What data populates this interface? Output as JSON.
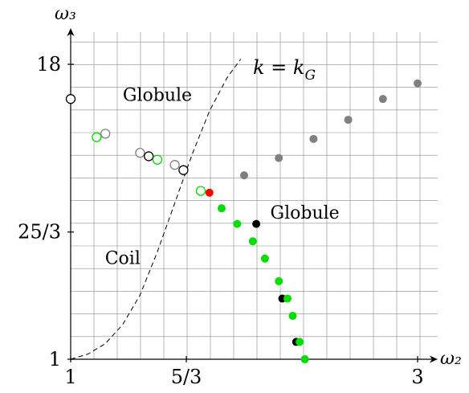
{
  "chart_data": {
    "type": "scatter",
    "title": "",
    "xlabel": "ω₂",
    "ylabel": "ω₃",
    "xlim": [
      1,
      3
    ],
    "ylim": [
      1,
      18
    ],
    "grid": true,
    "x_ticks": [
      {
        "value": 1,
        "label": "1"
      },
      {
        "value": 1.6667,
        "label": "5/3"
      },
      {
        "value": 3,
        "label": "3"
      }
    ],
    "y_ticks": [
      {
        "value": 1,
        "label": "1"
      },
      {
        "value": 8.3333,
        "label": "25/3"
      },
      {
        "value": 18,
        "label": "18"
      }
    ],
    "curve": {
      "label": "k = k_G",
      "label_main": "k = k",
      "label_sub": "G",
      "style": "dashed",
      "points": [
        [
          1.0,
          1.0
        ],
        [
          1.1,
          1.3
        ],
        [
          1.2,
          1.9
        ],
        [
          1.3,
          3.0
        ],
        [
          1.4,
          4.7
        ],
        [
          1.5,
          7.2
        ],
        [
          1.6,
          10.0
        ],
        [
          1.7,
          12.8
        ],
        [
          1.8,
          15.3
        ],
        [
          1.9,
          17.2
        ],
        [
          1.98,
          18.3
        ]
      ]
    },
    "region_labels": [
      {
        "text": "Globule",
        "x": 1.5,
        "y": 15.9
      },
      {
        "text": "Globule",
        "x": 2.35,
        "y": 9.1
      },
      {
        "text": "Coil",
        "x": 1.3,
        "y": 6.5
      }
    ],
    "series": [
      {
        "color": "#808080",
        "marker": "filled",
        "points": [
          [
            2.0,
            11.6
          ],
          [
            2.2,
            12.6
          ],
          [
            2.4,
            13.7
          ],
          [
            2.6,
            14.8
          ],
          [
            2.8,
            16.0
          ],
          [
            3.0,
            16.9
          ]
        ]
      },
      {
        "color": "#ff0000",
        "marker": "filled",
        "points": [
          [
            1.8,
            10.6
          ]
        ]
      },
      {
        "color": "#000000",
        "marker": "filled",
        "points": [
          [
            2.07,
            8.8
          ],
          [
            2.22,
            4.5
          ],
          [
            2.3,
            2.0
          ]
        ]
      },
      {
        "color": "#00dd00",
        "marker": "filled",
        "points": [
          [
            1.87,
            9.7
          ],
          [
            1.96,
            8.8
          ],
          [
            2.05,
            7.8
          ],
          [
            2.12,
            6.8
          ],
          [
            2.2,
            5.5
          ],
          [
            2.25,
            4.5
          ],
          [
            2.28,
            3.5
          ],
          [
            2.32,
            2.0
          ],
          [
            2.35,
            1.0
          ]
        ]
      },
      {
        "color": "#808080",
        "marker": "hollow",
        "points": [
          [
            1.2,
            14.0
          ],
          [
            1.4,
            12.9
          ],
          [
            1.6,
            12.2
          ]
        ]
      },
      {
        "color": "#000000",
        "marker": "hollow",
        "points": [
          [
            1.0,
            16.0
          ],
          [
            1.45,
            12.7
          ],
          [
            1.65,
            11.9
          ]
        ]
      },
      {
        "color": "#00dd00",
        "marker": "hollow",
        "points": [
          [
            1.15,
            13.8
          ],
          [
            1.5,
            12.5
          ],
          [
            1.75,
            10.7
          ]
        ]
      }
    ]
  }
}
